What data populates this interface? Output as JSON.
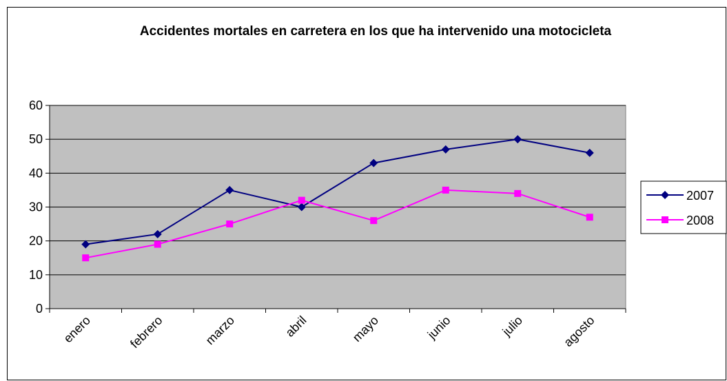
{
  "chart_data": {
    "type": "line",
    "title": "Accidentes mortales en carretera en los que ha intervenido una motocicleta",
    "categories": [
      "enero",
      "febrero",
      "marzo",
      "abril",
      "mayo",
      "junio",
      "julio",
      "agosto"
    ],
    "series": [
      {
        "name": "2007",
        "color": "#000080",
        "marker": "diamond",
        "values": [
          19,
          22,
          35,
          30,
          43,
          47,
          50,
          46
        ]
      },
      {
        "name": "2008",
        "color": "#ff00ff",
        "marker": "square",
        "values": [
          15,
          19,
          25,
          32,
          26,
          35,
          34,
          27
        ]
      }
    ],
    "ylim": [
      0,
      60
    ],
    "yticks": [
      0,
      10,
      20,
      30,
      40,
      50,
      60
    ],
    "grid": true,
    "legend": "right"
  }
}
